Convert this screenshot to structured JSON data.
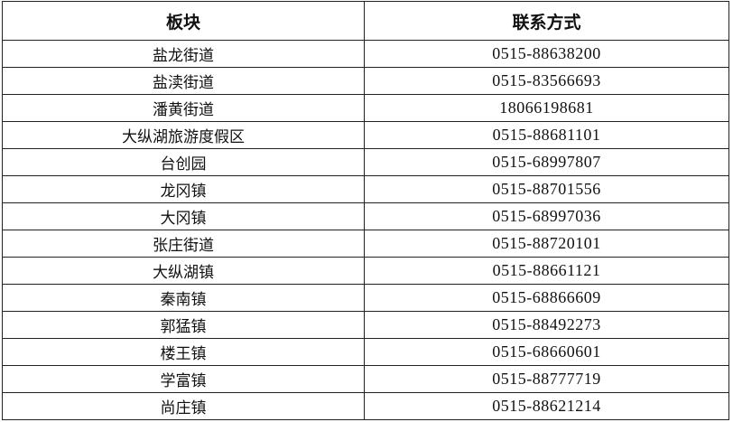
{
  "table": {
    "headers": [
      "板块",
      "联系方式"
    ],
    "rows": [
      {
        "area": "盐龙街道",
        "contact": "0515-88638200"
      },
      {
        "area": "盐渎街道",
        "contact": "0515-83566693"
      },
      {
        "area": "潘黄街道",
        "contact": "18066198681"
      },
      {
        "area": "大纵湖旅游度假区",
        "contact": "0515-88681101"
      },
      {
        "area": "台创园",
        "contact": "0515-68997807"
      },
      {
        "area": "龙冈镇",
        "contact": "0515-88701556"
      },
      {
        "area": "大冈镇",
        "contact": "0515-68997036"
      },
      {
        "area": "张庄街道",
        "contact": "0515-88720101"
      },
      {
        "area": "大纵湖镇",
        "contact": "0515-88661121"
      },
      {
        "area": "秦南镇",
        "contact": "0515-68866609"
      },
      {
        "area": "郭猛镇",
        "contact": "0515-88492273"
      },
      {
        "area": "楼王镇",
        "contact": "0515-68660601"
      },
      {
        "area": "学富镇",
        "contact": "0515-88777719"
      },
      {
        "area": "尚庄镇",
        "contact": "0515-88621214"
      }
    ]
  }
}
